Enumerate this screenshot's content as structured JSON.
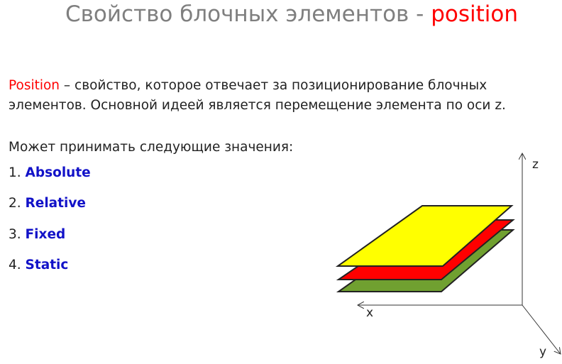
{
  "slide": {
    "title_main": "Свойство блочных элементов - ",
    "title_accent": "position",
    "intro_term": "Position",
    "intro_line1_rest": " – свойство, которое отвечает за позиционирование блочных",
    "intro_line2": "элементов. Основной идеей является перемещение элемента по оси z.",
    "values_heading": "Может принимать следующие значения:",
    "values": [
      {
        "number": "1.",
        "name": "Absolute"
      },
      {
        "number": "2.",
        "name": "Relative"
      },
      {
        "number": "3.",
        "name": "Fixed"
      },
      {
        "number": "4.",
        "name": "Static"
      }
    ]
  },
  "diagram": {
    "axis_z": "z",
    "axis_x": "x",
    "axis_y": "y",
    "layer_colors": {
      "top": "#ffff00",
      "middle": "#ff0000",
      "bottom": "#70a030"
    },
    "accent_color": "#ff0000",
    "value_color": "#1212c8"
  }
}
